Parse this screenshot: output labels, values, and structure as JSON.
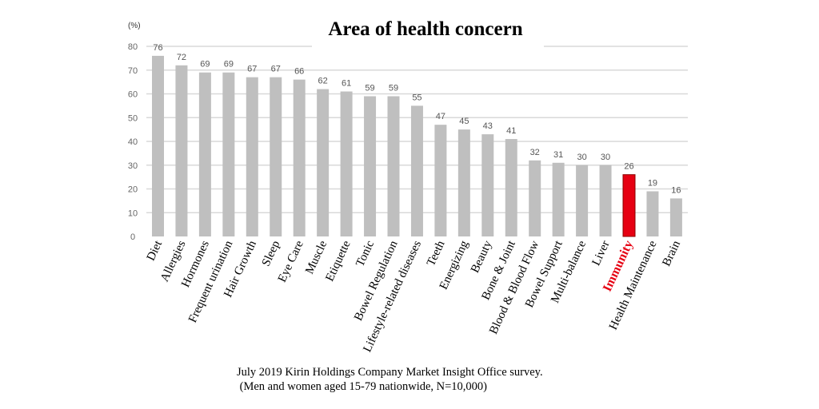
{
  "chart_data": {
    "type": "bar",
    "title": "Area of health concern",
    "ylabel": "(%)",
    "xlabel": "",
    "ylim": [
      0,
      80
    ],
    "yticks": [
      0,
      10,
      20,
      30,
      40,
      50,
      60,
      70,
      80
    ],
    "grid": true,
    "legend": "none",
    "categories": [
      "Diet",
      "Allergies",
      "Hormones",
      "Frequent urination",
      "Hair Growth",
      "Sleep",
      "Eye Care",
      "Muscle",
      "Etiquette",
      "Tonic",
      "Bowel Regulation",
      "Lifestyle-related diseases",
      "Teeth",
      "Energizing",
      "Beauty",
      "Bone & Joint",
      "Blood & Blood Flow",
      "Bowel Support",
      "Multi-balance",
      "Liver",
      "Immunity",
      "Health Maintenance",
      "Brain"
    ],
    "values": [
      76,
      72,
      69,
      69,
      67,
      67,
      66,
      62,
      61,
      59,
      59,
      55,
      47,
      45,
      43,
      41,
      32,
      31,
      30,
      30,
      26,
      19,
      16
    ],
    "highlight": "Immunity",
    "colors": {
      "bar": "#bfbfbf",
      "highlight": "#e60012",
      "highlight_border": "#8b0000"
    }
  },
  "source": {
    "line1": "July 2019 Kirin Holdings Company Market Insight Office survey.",
    "line2": " (Men and women aged 15-79 nationwide, N=10,000)"
  }
}
